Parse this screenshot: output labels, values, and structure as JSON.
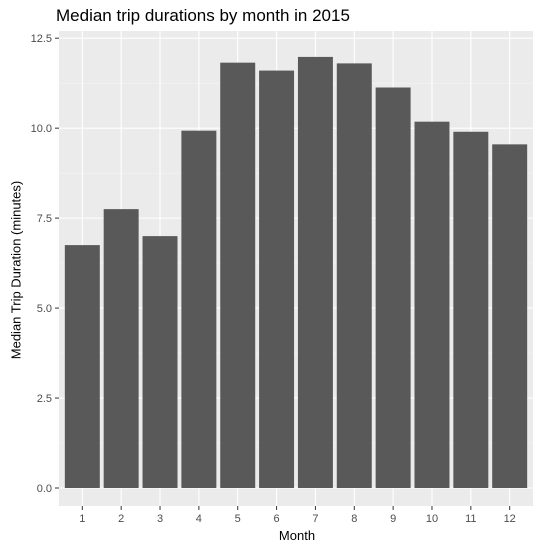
{
  "chart_data": {
    "type": "bar",
    "title": "Median trip durations by month in 2015",
    "xlabel": "Month",
    "ylabel": "Median Trip Duration (minutes)",
    "categories": [
      "1",
      "2",
      "3",
      "4",
      "5",
      "6",
      "7",
      "8",
      "9",
      "10",
      "11",
      "12"
    ],
    "values": [
      6.75,
      7.75,
      7.0,
      9.93,
      11.82,
      11.6,
      11.98,
      11.8,
      11.13,
      10.18,
      9.9,
      9.55
    ],
    "ylim": [
      -0.5,
      12.7
    ],
    "yticks": [
      0.0,
      2.5,
      5.0,
      7.5,
      10.0,
      12.5
    ],
    "ytick_labels": [
      "0.0",
      "2.5",
      "5.0",
      "7.5",
      "10.0",
      "12.5"
    ],
    "grid": true,
    "legend": "none",
    "colors": {
      "bar": "#595959",
      "panel": "#ebebeb",
      "grid_major": "#ffffff",
      "grid_minor": "#f5f5f5"
    }
  }
}
